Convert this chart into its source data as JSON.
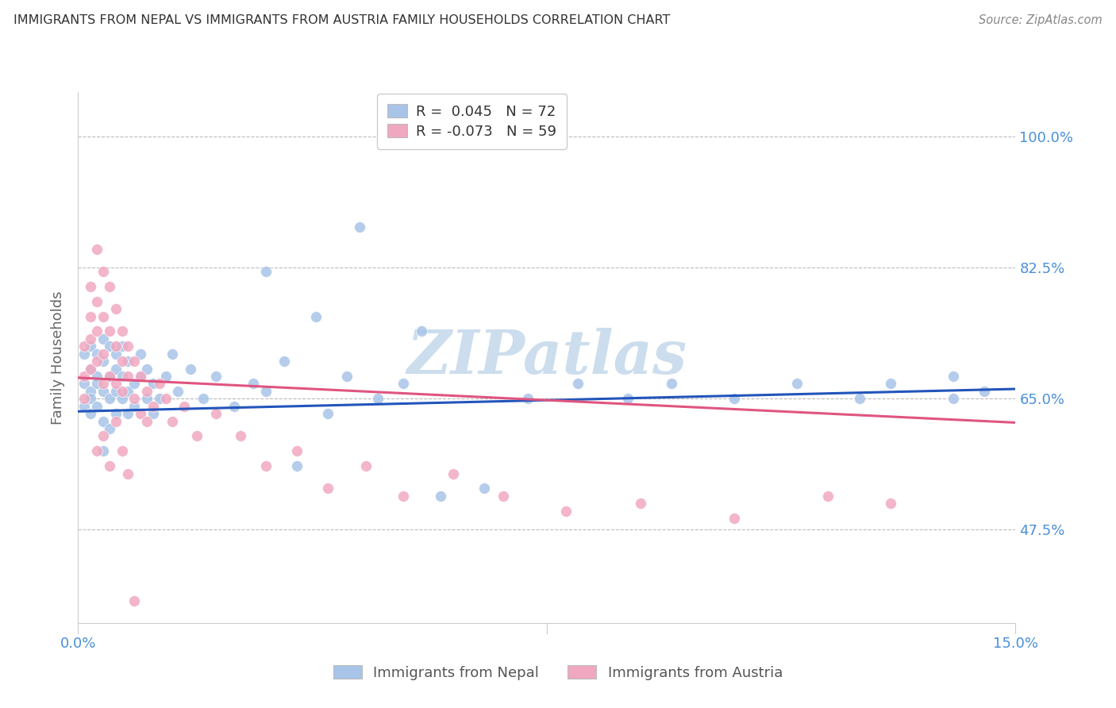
{
  "title": "IMMIGRANTS FROM NEPAL VS IMMIGRANTS FROM AUSTRIA FAMILY HOUSEHOLDS CORRELATION CHART",
  "source": "Source: ZipAtlas.com",
  "ylabel": "Family Households",
  "ytick_labels": [
    "47.5%",
    "65.0%",
    "82.5%",
    "100.0%"
  ],
  "ytick_values": [
    0.475,
    0.65,
    0.825,
    1.0
  ],
  "xlim": [
    0.0,
    0.15
  ],
  "ylim": [
    0.35,
    1.06
  ],
  "nepal_R": 0.045,
  "nepal_N": 72,
  "austria_R": -0.073,
  "austria_N": 59,
  "nepal_color": "#a8c4e8",
  "austria_color": "#f0a8c0",
  "nepal_line_color": "#2255bb",
  "austria_line_color": "#e05580",
  "watermark": "ZIPatlas",
  "watermark_color": "#ccdded",
  "nepal_line_x0": 0.0,
  "nepal_line_y0": 0.633,
  "nepal_line_x1": 0.15,
  "nepal_line_y1": 0.663,
  "austria_line_x0": 0.0,
  "austria_line_y0": 0.678,
  "austria_line_x1": 0.15,
  "austria_line_y1": 0.618,
  "nepal_scatter_x": [
    0.001,
    0.001,
    0.001,
    0.002,
    0.002,
    0.002,
    0.002,
    0.002,
    0.003,
    0.003,
    0.003,
    0.003,
    0.004,
    0.004,
    0.004,
    0.004,
    0.004,
    0.005,
    0.005,
    0.005,
    0.005,
    0.006,
    0.006,
    0.006,
    0.006,
    0.007,
    0.007,
    0.007,
    0.008,
    0.008,
    0.008,
    0.009,
    0.009,
    0.01,
    0.01,
    0.011,
    0.011,
    0.012,
    0.012,
    0.013,
    0.014,
    0.015,
    0.016,
    0.018,
    0.02,
    0.022,
    0.025,
    0.028,
    0.03,
    0.033,
    0.035,
    0.04,
    0.043,
    0.048,
    0.052,
    0.058,
    0.065,
    0.072,
    0.08,
    0.088,
    0.095,
    0.105,
    0.115,
    0.125,
    0.13,
    0.14,
    0.14,
    0.145,
    0.03,
    0.038,
    0.045,
    0.055
  ],
  "nepal_scatter_y": [
    0.64,
    0.67,
    0.71,
    0.63,
    0.66,
    0.69,
    0.72,
    0.65,
    0.68,
    0.71,
    0.64,
    0.67,
    0.7,
    0.73,
    0.66,
    0.62,
    0.58,
    0.68,
    0.72,
    0.65,
    0.61,
    0.71,
    0.66,
    0.63,
    0.69,
    0.72,
    0.65,
    0.68,
    0.66,
    0.7,
    0.63,
    0.67,
    0.64,
    0.68,
    0.71,
    0.65,
    0.69,
    0.63,
    0.67,
    0.65,
    0.68,
    0.71,
    0.66,
    0.69,
    0.65,
    0.68,
    0.64,
    0.67,
    0.66,
    0.7,
    0.56,
    0.63,
    0.68,
    0.65,
    0.67,
    0.52,
    0.53,
    0.65,
    0.67,
    0.65,
    0.67,
    0.65,
    0.67,
    0.65,
    0.67,
    0.65,
    0.68,
    0.66,
    0.82,
    0.76,
    0.88,
    0.74
  ],
  "austria_scatter_x": [
    0.001,
    0.001,
    0.001,
    0.002,
    0.002,
    0.002,
    0.002,
    0.003,
    0.003,
    0.003,
    0.003,
    0.004,
    0.004,
    0.004,
    0.004,
    0.005,
    0.005,
    0.005,
    0.006,
    0.006,
    0.006,
    0.007,
    0.007,
    0.007,
    0.008,
    0.008,
    0.009,
    0.009,
    0.01,
    0.01,
    0.011,
    0.011,
    0.012,
    0.013,
    0.014,
    0.015,
    0.017,
    0.019,
    0.022,
    0.026,
    0.03,
    0.035,
    0.04,
    0.046,
    0.052,
    0.06,
    0.068,
    0.078,
    0.09,
    0.105,
    0.12,
    0.13,
    0.003,
    0.004,
    0.005,
    0.006,
    0.007,
    0.008,
    0.009
  ],
  "austria_scatter_y": [
    0.72,
    0.68,
    0.65,
    0.8,
    0.76,
    0.73,
    0.69,
    0.85,
    0.78,
    0.74,
    0.7,
    0.82,
    0.76,
    0.71,
    0.67,
    0.8,
    0.74,
    0.68,
    0.77,
    0.72,
    0.67,
    0.74,
    0.7,
    0.66,
    0.72,
    0.68,
    0.7,
    0.65,
    0.68,
    0.63,
    0.66,
    0.62,
    0.64,
    0.67,
    0.65,
    0.62,
    0.64,
    0.6,
    0.63,
    0.6,
    0.56,
    0.58,
    0.53,
    0.56,
    0.52,
    0.55,
    0.52,
    0.5,
    0.51,
    0.49,
    0.52,
    0.51,
    0.58,
    0.6,
    0.56,
    0.62,
    0.58,
    0.55,
    0.38
  ]
}
